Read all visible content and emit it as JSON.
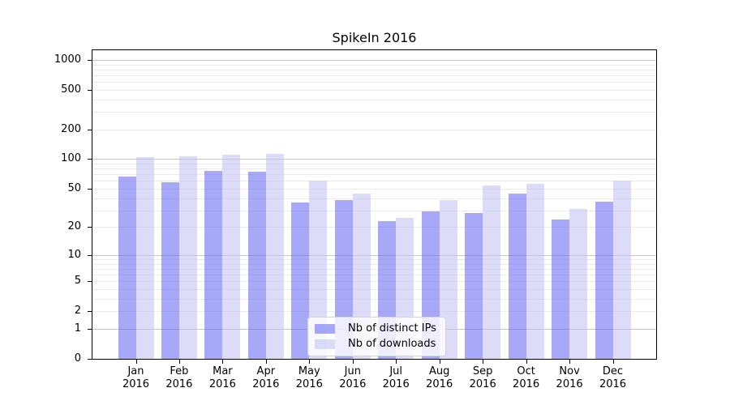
{
  "figure": {
    "background": "#ffffff",
    "axis_color": "#000000"
  },
  "chart_data": {
    "type": "bar",
    "title": "SpikeIn 2016",
    "xlabel": "",
    "ylabel": "",
    "categories": [
      "Jan",
      "Feb",
      "Mar",
      "Apr",
      "May",
      "Jun",
      "Jul",
      "Aug",
      "Sep",
      "Oct",
      "Nov",
      "Dec"
    ],
    "category_year": "2016",
    "series": [
      {
        "name": "Nb of distinct IPs",
        "color": "rgba(110,110,245,0.6)",
        "values": [
          66,
          58,
          76,
          75,
          36,
          38,
          23,
          29,
          28,
          45,
          24,
          37
        ]
      },
      {
        "name": "Nb of downloads",
        "color": "rgba(197,197,245,0.6)",
        "values": [
          104,
          106,
          110,
          113,
          60,
          45,
          25,
          38,
          54,
          56,
          31,
          60
        ]
      }
    ],
    "yscale": "log1p",
    "yticks": [
      0,
      1,
      2,
      5,
      10,
      20,
      50,
      100,
      200,
      500,
      1000
    ],
    "ylim": [
      0,
      1250
    ],
    "grid": {
      "on": true,
      "major_values": [
        1,
        10,
        100,
        1000
      ],
      "major_color": "#c6c6c6",
      "minor_color": "#ebebeb"
    },
    "legend": {
      "position": "lower center",
      "border_color": "#d4d4d4"
    }
  }
}
